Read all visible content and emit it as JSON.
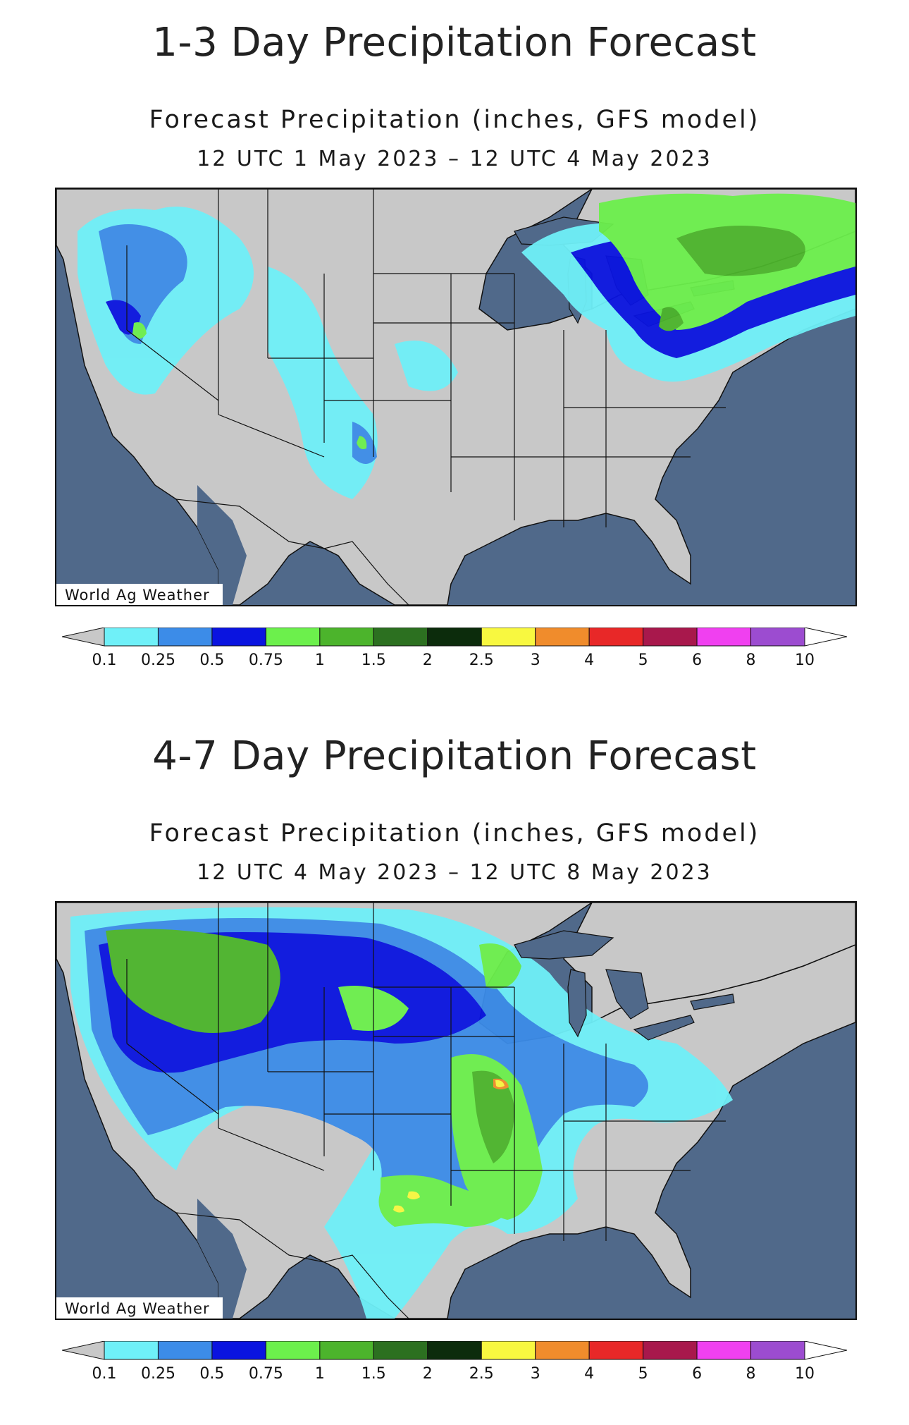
{
  "panels": [
    {
      "title": "1-3 Day Precipitation Forecast",
      "subtitle_line1": "Forecast Precipitation (inches, GFS model)",
      "subtitle_line2": "12 UTC 1 May 2023 – 12 UTC 4 May 2023",
      "credit": "World Ag Weather"
    },
    {
      "title": "4-7 Day Precipitation Forecast",
      "subtitle_line1": "Forecast Precipitation (inches, GFS model)",
      "subtitle_line2": "12 UTC 4 May 2023 – 12 UTC 8 May 2023",
      "credit": "World Ag Weather"
    }
  ],
  "legend": {
    "labels": [
      "0.1",
      "0.25",
      "0.5",
      "0.75",
      "1",
      "1.5",
      "2",
      "2.5",
      "3",
      "4",
      "5",
      "6",
      "8",
      "10"
    ],
    "colors": [
      "#c8c8c8",
      "#6ff0f8",
      "#3c8ce8",
      "#0a14e0",
      "#6cf04c",
      "#4cb42c",
      "#2c7020",
      "#0c2c0c",
      "#f8f840",
      "#f08c2c",
      "#e82828",
      "#a8184c",
      "#f040f0",
      "#9c4cd0",
      "#ffffff"
    ]
  },
  "colors": {
    "ocean": "#50698a",
    "land": "#c8c8c8",
    "lake": "#50698a",
    "border": "#111111"
  }
}
